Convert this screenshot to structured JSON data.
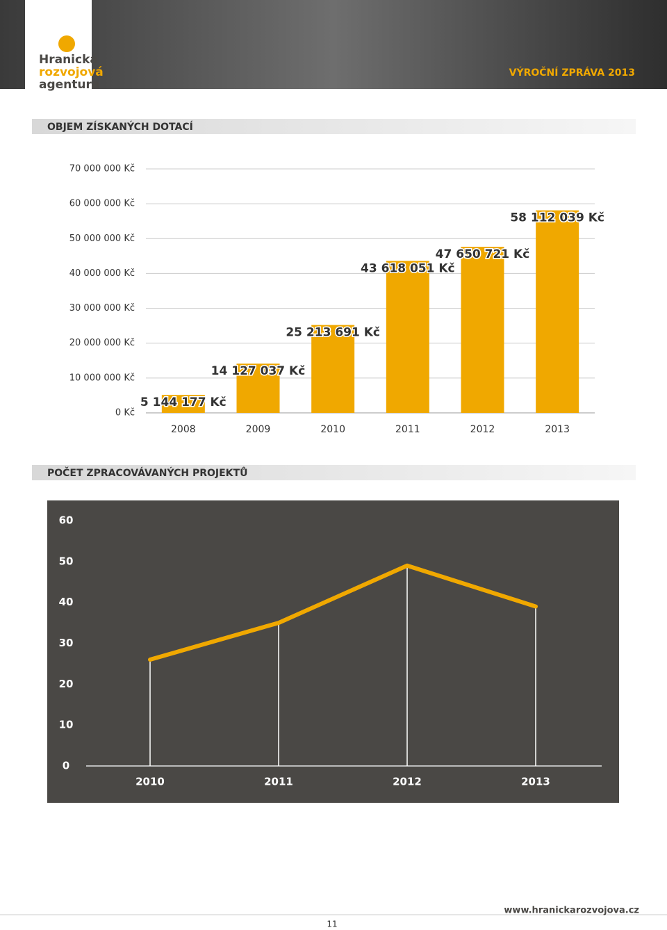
{
  "header": {
    "logo": [
      "Hranická",
      "rozvojová",
      "agentura"
    ],
    "title": "VÝROČNÍ ZPRÁVA 2013"
  },
  "chart_data": [
    {
      "type": "bar",
      "title": "OBJEM ZÍSKANÝCH DOTACÍ",
      "categories": [
        "2008",
        "2009",
        "2010",
        "2011",
        "2012",
        "2013"
      ],
      "values": [
        5144177,
        14127037,
        25213691,
        43618051,
        47650721,
        58112039
      ],
      "value_labels": [
        "5 144 177 Kč",
        "14 127 037 Kč",
        "25 213 691 Kč",
        "43 618 051 Kč",
        "47 650 721 Kč",
        "58 112 039 Kč"
      ],
      "color": "#f0a800",
      "ylim": [
        0,
        70000000
      ],
      "yticks": [
        {
          "value": 0,
          "label": "0 Kč"
        },
        {
          "value": 10000000,
          "label": "10 000 000 Kč"
        },
        {
          "value": 20000000,
          "label": "20 000 000 Kč"
        },
        {
          "value": 30000000,
          "label": "30 000 000 Kč"
        },
        {
          "value": 40000000,
          "label": "40 000 000 Kč"
        },
        {
          "value": 50000000,
          "label": "50 000 000 Kč"
        },
        {
          "value": 60000000,
          "label": "60 000 000 Kč"
        },
        {
          "value": 70000000,
          "label": "70 000 000 Kč"
        }
      ],
      "grid": true
    },
    {
      "type": "line",
      "title": "POČET ZPRACOVÁVANÝCH PROJEKTŮ",
      "categories": [
        "2010",
        "2011",
        "2012",
        "2013"
      ],
      "values": [
        26,
        35,
        49,
        39
      ],
      "color": "#f0a800",
      "ylim": [
        0,
        60
      ],
      "yticks": [
        0,
        10,
        20,
        30,
        40,
        50,
        60
      ],
      "grid": false
    }
  ],
  "footer": {
    "url": "www.hranickarozvojova.cz",
    "page": "11"
  }
}
